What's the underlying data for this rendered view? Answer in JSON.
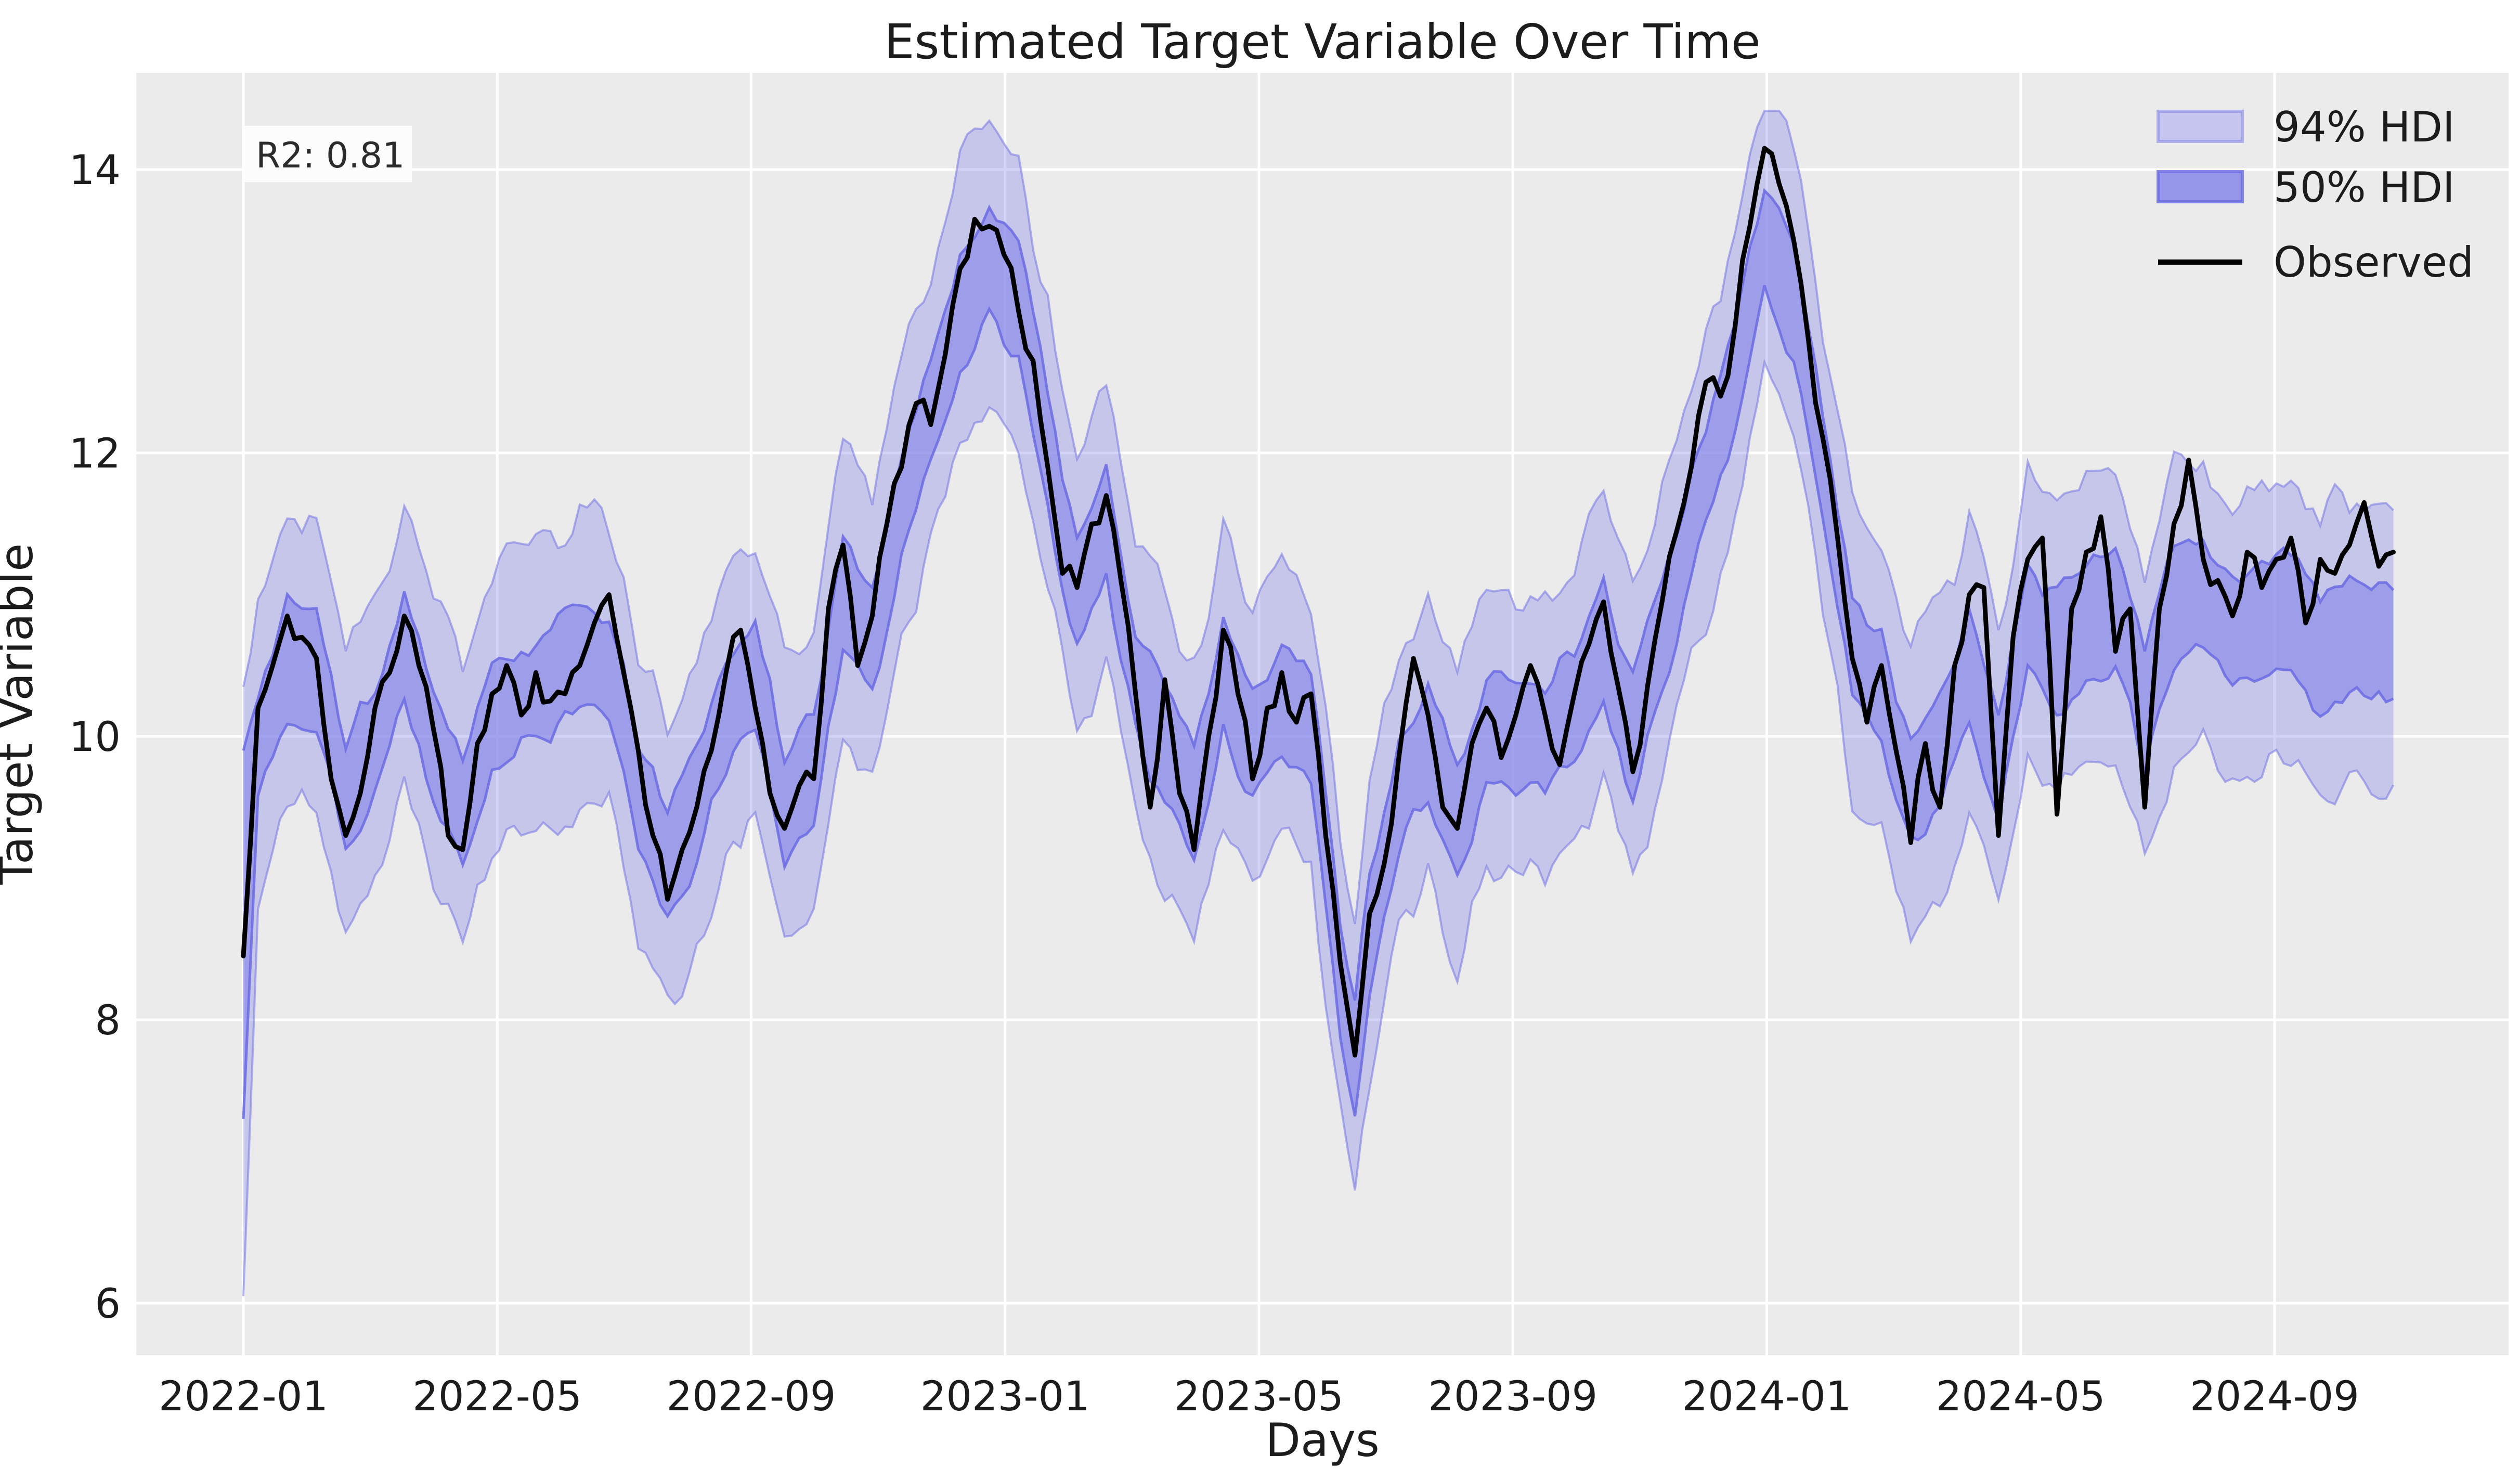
{
  "figure": {
    "title": "Estimated Target Variable Over Time",
    "xlabel": "Days",
    "ylabel": "Target Variable",
    "annotation": "R2: 0.81"
  },
  "legend": [
    {
      "label": "94% HDI",
      "swatch": "band-light"
    },
    {
      "label": "50% HDI",
      "swatch": "band-dark"
    },
    {
      "label": "Observed",
      "swatch": "line"
    }
  ],
  "colors": {
    "plot_bg": "#ebebeb",
    "grid": "#ffffff",
    "band_base": "#8282e8",
    "band_edge": "#6b6be4",
    "band_fill_94": "#c5c5f0",
    "band_fill_50": "#9595ea",
    "observed": "#000000",
    "annotation_bg": "#fcfcfc",
    "text": "#1c1c1c"
  },
  "axes": {
    "yticks": [
      6,
      8,
      10,
      12,
      14
    ],
    "ylim": [
      5.63,
      14.68
    ],
    "xtick_labels": [
      "2022-01",
      "2022-05",
      "2022-09",
      "2023-01",
      "2023-05",
      "2023-09",
      "2024-01",
      "2024-05",
      "2024-09"
    ],
    "xtick_interval_months": 4,
    "x_start_date": "2022-01-01",
    "x_end_day": 1029,
    "grid": true
  },
  "chart_data": {
    "type": "line",
    "series_name": "Observed",
    "x_unit": "days since 2022-01-01",
    "x_step_days": 7,
    "observed": [
      8.45,
      10.2,
      10.5,
      10.85,
      10.7,
      10.55,
      9.7,
      9.3,
      9.6,
      10.2,
      10.45,
      10.85,
      10.5,
      10.05,
      9.3,
      9.2,
      9.95,
      10.3,
      10.5,
      10.15,
      10.45,
      10.25,
      10.3,
      10.5,
      10.8,
      11.0,
      10.45,
      9.9,
      9.3,
      8.85,
      9.2,
      9.5,
      9.9,
      10.45,
      10.75,
      10.2,
      9.6,
      9.35,
      9.65,
      9.7,
      10.9,
      11.35,
      10.5,
      10.85,
      11.5,
      11.9,
      12.35,
      12.2,
      12.7,
      13.3,
      13.65,
      13.6,
      13.4,
      13.0,
      12.65,
      11.9,
      11.15,
      11.05,
      11.5,
      11.7,
      11.1,
      10.3,
      9.5,
      10.4,
      9.6,
      9.2,
      10.0,
      10.75,
      10.3,
      9.7,
      10.2,
      10.45,
      10.1,
      10.3,
      9.3,
      8.4,
      7.75,
      8.75,
      9.1,
      9.85,
      10.55,
      10.15,
      9.5,
      9.35,
      9.95,
      10.2,
      9.85,
      10.15,
      10.5,
      10.15,
      9.8,
      10.3,
      10.65,
      10.95,
      10.35,
      9.75,
      10.35,
      10.95,
      11.45,
      11.9,
      12.5,
      12.4,
      12.9,
      13.6,
      14.15,
      13.9,
      13.5,
      12.8,
      12.1,
      11.4,
      10.55,
      10.1,
      10.5,
      9.9,
      9.25,
      9.95,
      9.5,
      10.5,
      11.0,
      11.05,
      9.3,
      10.7,
      11.25,
      11.4,
      9.45,
      10.9,
      11.3,
      11.55,
      10.6,
      10.9,
      9.5,
      10.9,
      11.5,
      11.95,
      11.25,
      11.1,
      10.85,
      11.3,
      11.05,
      11.25,
      11.4,
      10.8,
      11.25,
      11.15,
      11.35,
      11.65,
      11.2,
      11.3
    ],
    "hdi": {
      "anchor_days": [
        0,
        7,
        21,
        35,
        49,
        63,
        77,
        91,
        105,
        119,
        133,
        147,
        161,
        175,
        189,
        203,
        217,
        231,
        245,
        259,
        273,
        287,
        301,
        315,
        329,
        343,
        357,
        371,
        385,
        399,
        413,
        427,
        441,
        455,
        469,
        483,
        497,
        511,
        525,
        532,
        539,
        553,
        567,
        581,
        595,
        609,
        623,
        637,
        651,
        665,
        679,
        693,
        707,
        721,
        728,
        742,
        756,
        770,
        784,
        798,
        812,
        826,
        840,
        854,
        868,
        882,
        896,
        910,
        924,
        938,
        952,
        966,
        980,
        994,
        1008,
        1029
      ],
      "center": [
        8.2,
        9.9,
        10.55,
        10.45,
        9.6,
        10.0,
        10.6,
        10.0,
        9.5,
        10.15,
        10.3,
        10.35,
        10.6,
        10.5,
        9.6,
        9.1,
        9.5,
        10.2,
        10.4,
        9.5,
        9.8,
        11.0,
        10.75,
        11.6,
        12.3,
        13.0,
        13.35,
        13.1,
        12.0,
        11.0,
        11.45,
        10.4,
        9.9,
        9.5,
        10.4,
        9.9,
        10.3,
        10.0,
        8.3,
        7.75,
        8.6,
        9.6,
        10.0,
        9.4,
        10.0,
        10.0,
        10.0,
        10.2,
        10.7,
        10.0,
        10.7,
        11.5,
        12.2,
        13.0,
        13.5,
        13.1,
        11.9,
        10.6,
        10.3,
        9.6,
        9.9,
        10.5,
        9.8,
        10.8,
        10.6,
        10.8,
        10.9,
        10.2,
        10.9,
        11.0,
        10.7,
        10.8,
        10.85,
        10.6,
        10.7,
        10.6
      ],
      "half_width_50": 0.38,
      "half_width_94": 1.0,
      "hdi94_max": 14.45,
      "start_spike": {
        "day": 0,
        "lo94": 6.05,
        "hi94": 10.35,
        "lo50": 7.3,
        "hi50": 9.9
      }
    }
  }
}
